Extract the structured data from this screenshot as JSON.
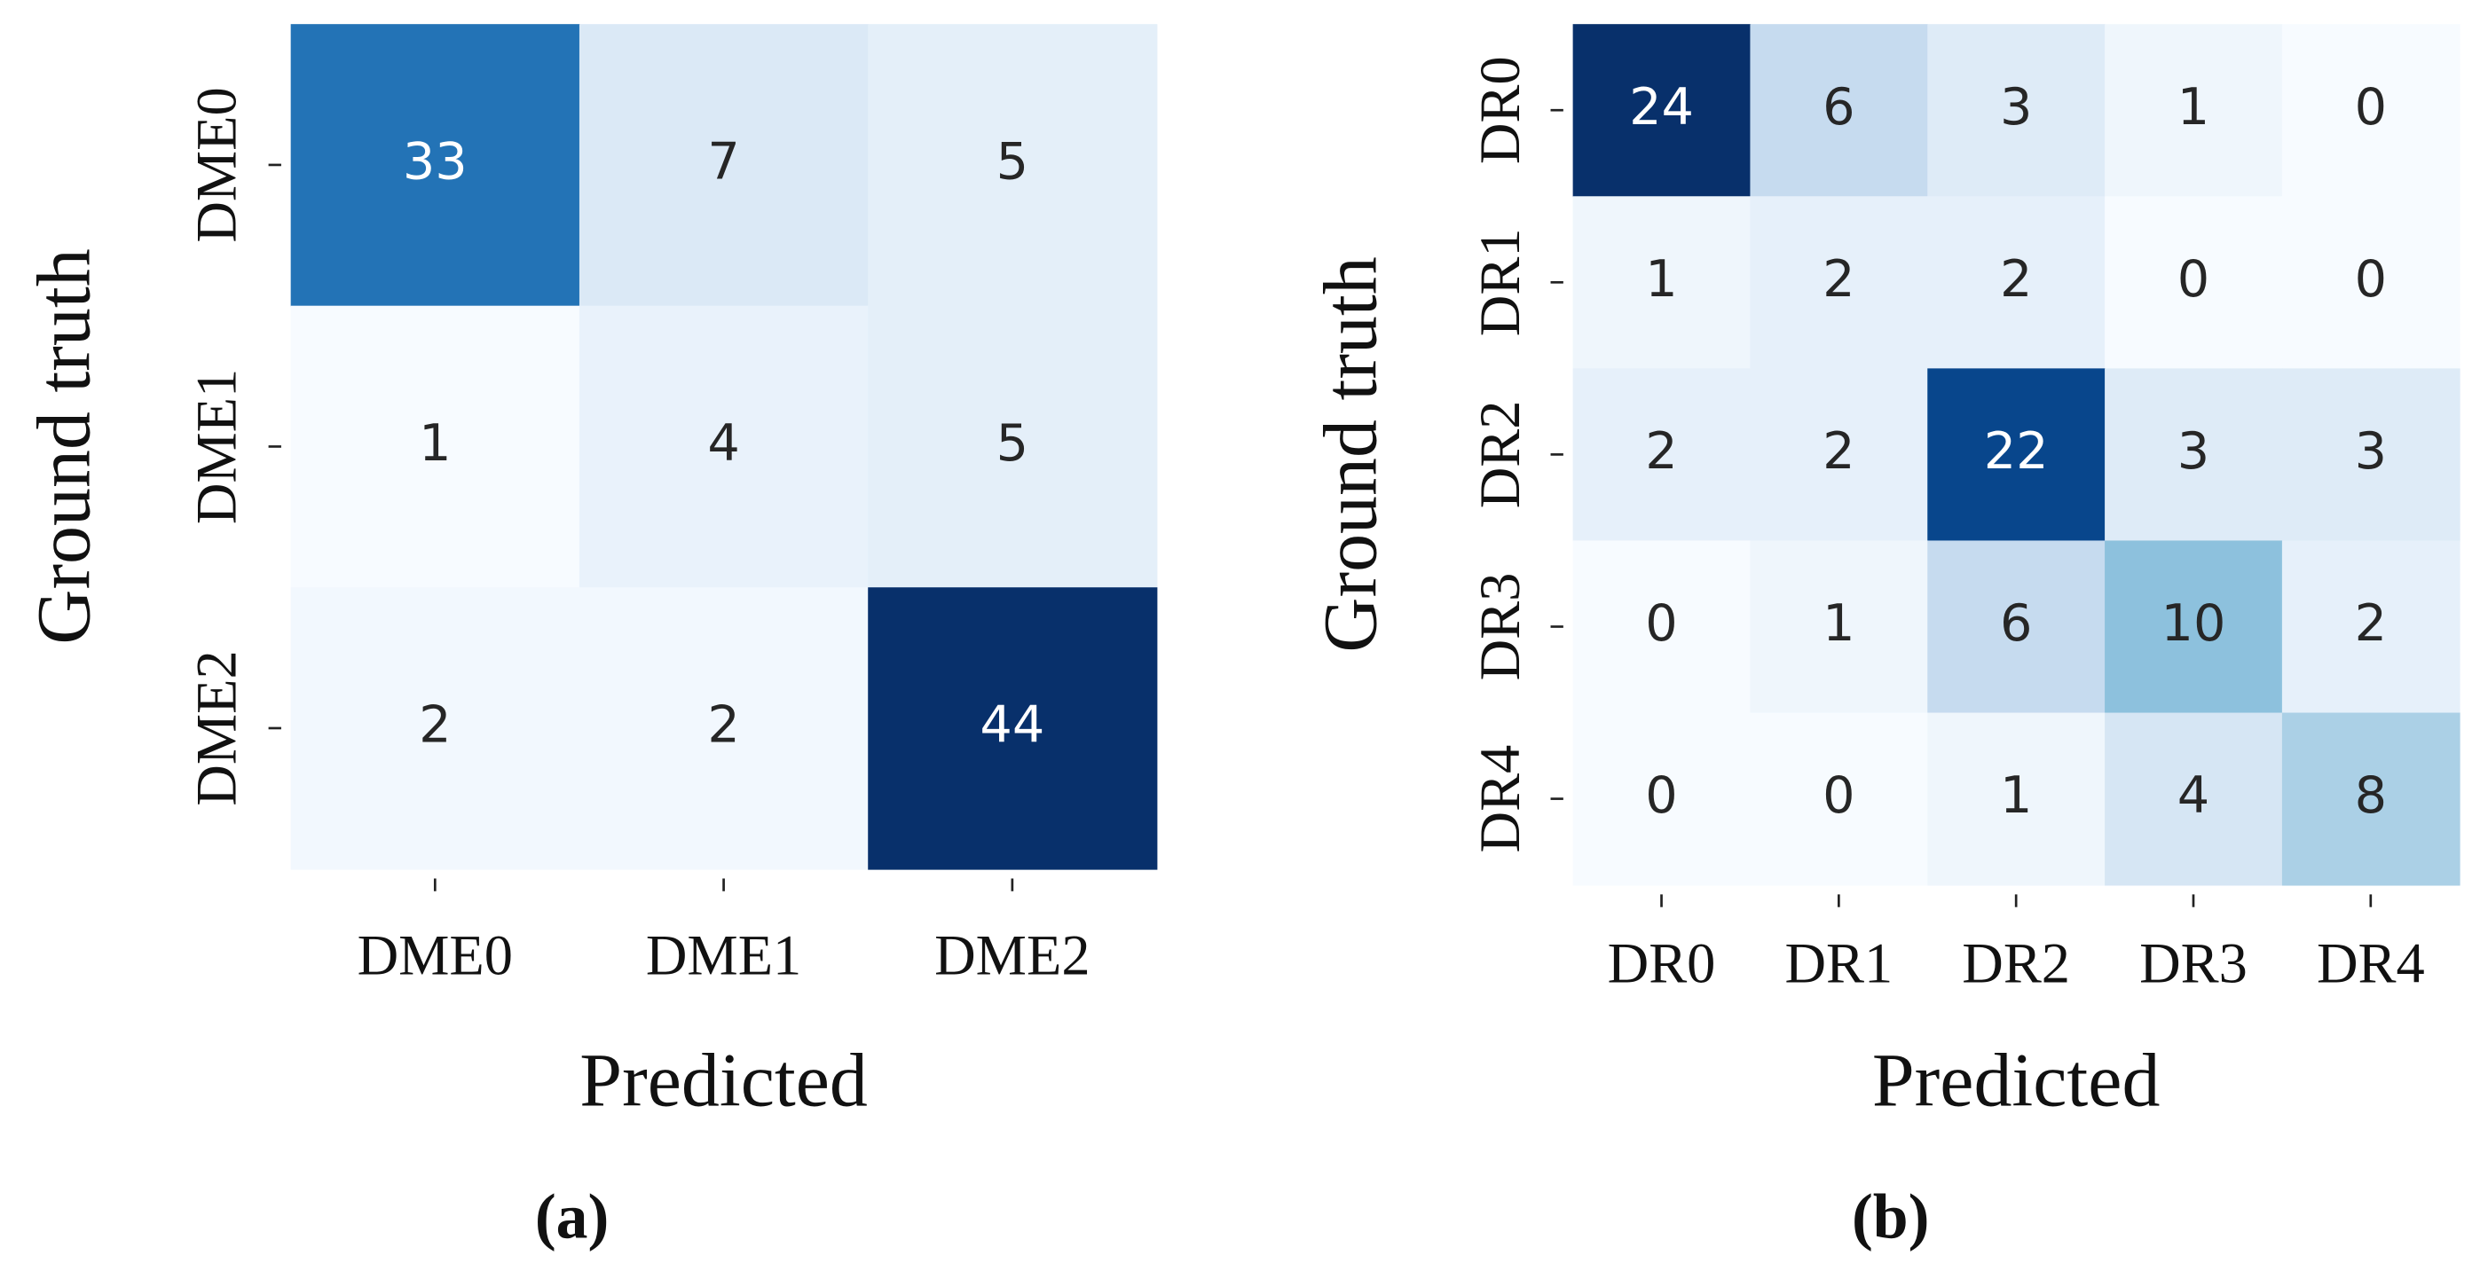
{
  "chart_data": [
    {
      "type": "heatmap",
      "caption": "(a)",
      "x_label": "Predicted",
      "y_label": "Ground truth",
      "x_categories": [
        "DME0",
        "DME1",
        "DME2"
      ],
      "y_categories": [
        "DME0",
        "DME1",
        "DME2"
      ],
      "values": [
        [
          33,
          7,
          5
        ],
        [
          1,
          4,
          5
        ],
        [
          2,
          2,
          44
        ]
      ],
      "colormap": "Blues"
    },
    {
      "type": "heatmap",
      "caption": "(b)",
      "x_label": "Predicted",
      "y_label": "Ground truth",
      "x_categories": [
        "DR0",
        "DR1",
        "DR2",
        "DR3",
        "DR4"
      ],
      "y_categories": [
        "DR0",
        "DR1",
        "DR2",
        "DR3",
        "DR4"
      ],
      "values": [
        [
          24,
          6,
          3,
          1,
          0
        ],
        [
          1,
          2,
          2,
          0,
          0
        ],
        [
          2,
          2,
          22,
          3,
          3
        ],
        [
          0,
          1,
          6,
          10,
          2
        ],
        [
          0,
          0,
          1,
          4,
          8
        ]
      ],
      "colormap": "Blues"
    }
  ]
}
